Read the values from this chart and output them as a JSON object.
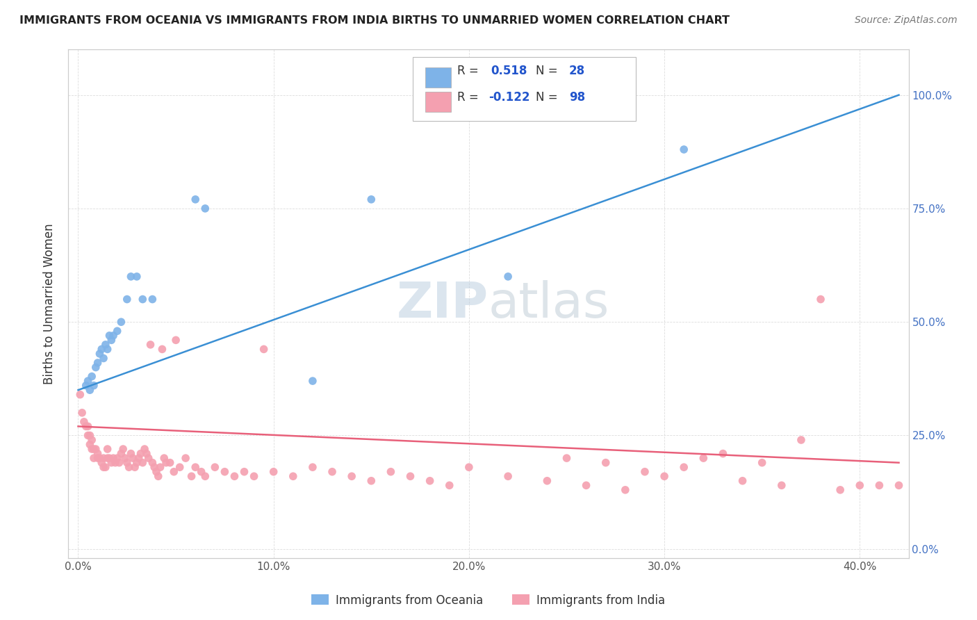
{
  "title": "IMMIGRANTS FROM OCEANIA VS IMMIGRANTS FROM INDIA BIRTHS TO UNMARRIED WOMEN CORRELATION CHART",
  "source": "Source: ZipAtlas.com",
  "ylabel": "Births to Unmarried Women",
  "oceania_color": "#7EB3E8",
  "india_color": "#F4A0B0",
  "oceania_line_color": "#3A8FD4",
  "india_line_color": "#E8607A",
  "watermark_color": "#C8D8EA",
  "xlim": [
    0.0,
    0.42
  ],
  "ylim": [
    0.0,
    1.08
  ],
  "xtick_vals": [
    0.0,
    0.1,
    0.2,
    0.3,
    0.4
  ],
  "xtick_labels": [
    "0.0%",
    "10.0%",
    "20.0%",
    "30.0%",
    "40.0%"
  ],
  "ytick_vals": [
    0.0,
    0.25,
    0.5,
    0.75,
    1.0
  ],
  "ytick_labels": [
    "0.0%",
    "25.0%",
    "50.0%",
    "75.0%",
    "100.0%"
  ],
  "legend_text_color": "#333333",
  "legend_val_color": "#2255AA",
  "oceania_x": [
    0.004,
    0.005,
    0.006,
    0.007,
    0.008,
    0.009,
    0.01,
    0.011,
    0.012,
    0.013,
    0.014,
    0.015,
    0.016,
    0.017,
    0.018,
    0.02,
    0.022,
    0.025,
    0.027,
    0.03,
    0.033,
    0.038,
    0.06,
    0.065,
    0.12,
    0.15,
    0.22,
    0.31
  ],
  "oceania_y": [
    0.36,
    0.37,
    0.35,
    0.38,
    0.36,
    0.4,
    0.41,
    0.43,
    0.44,
    0.42,
    0.45,
    0.44,
    0.47,
    0.46,
    0.47,
    0.48,
    0.5,
    0.55,
    0.6,
    0.6,
    0.55,
    0.55,
    0.77,
    0.75,
    0.37,
    0.77,
    0.6,
    0.88
  ],
  "india_x": [
    0.001,
    0.002,
    0.003,
    0.004,
    0.005,
    0.005,
    0.006,
    0.006,
    0.007,
    0.007,
    0.008,
    0.008,
    0.009,
    0.01,
    0.01,
    0.011,
    0.012,
    0.013,
    0.013,
    0.014,
    0.015,
    0.015,
    0.016,
    0.017,
    0.018,
    0.019,
    0.02,
    0.021,
    0.022,
    0.023,
    0.024,
    0.025,
    0.026,
    0.027,
    0.028,
    0.029,
    0.03,
    0.031,
    0.032,
    0.033,
    0.034,
    0.035,
    0.036,
    0.037,
    0.038,
    0.039,
    0.04,
    0.041,
    0.042,
    0.043,
    0.044,
    0.045,
    0.047,
    0.049,
    0.05,
    0.052,
    0.055,
    0.058,
    0.06,
    0.063,
    0.065,
    0.07,
    0.075,
    0.08,
    0.085,
    0.09,
    0.095,
    0.1,
    0.11,
    0.12,
    0.13,
    0.14,
    0.15,
    0.16,
    0.17,
    0.18,
    0.19,
    0.2,
    0.22,
    0.24,
    0.26,
    0.28,
    0.3,
    0.32,
    0.34,
    0.36,
    0.37,
    0.38,
    0.39,
    0.4,
    0.41,
    0.42,
    0.35,
    0.33,
    0.31,
    0.29,
    0.27,
    0.25
  ],
  "india_y": [
    0.34,
    0.3,
    0.28,
    0.27,
    0.25,
    0.27,
    0.25,
    0.23,
    0.22,
    0.24,
    0.22,
    0.2,
    0.22,
    0.21,
    0.2,
    0.2,
    0.19,
    0.2,
    0.18,
    0.18,
    0.22,
    0.2,
    0.2,
    0.19,
    0.2,
    0.19,
    0.2,
    0.19,
    0.21,
    0.22,
    0.2,
    0.19,
    0.18,
    0.21,
    0.2,
    0.18,
    0.19,
    0.2,
    0.21,
    0.19,
    0.22,
    0.21,
    0.2,
    0.45,
    0.19,
    0.18,
    0.17,
    0.16,
    0.18,
    0.44,
    0.2,
    0.19,
    0.19,
    0.17,
    0.46,
    0.18,
    0.2,
    0.16,
    0.18,
    0.17,
    0.16,
    0.18,
    0.17,
    0.16,
    0.17,
    0.16,
    0.44,
    0.17,
    0.16,
    0.18,
    0.17,
    0.16,
    0.15,
    0.17,
    0.16,
    0.15,
    0.14,
    0.18,
    0.16,
    0.15,
    0.14,
    0.13,
    0.16,
    0.2,
    0.15,
    0.14,
    0.24,
    0.55,
    0.13,
    0.14,
    0.14,
    0.14,
    0.19,
    0.21,
    0.18,
    0.17,
    0.19,
    0.2
  ]
}
